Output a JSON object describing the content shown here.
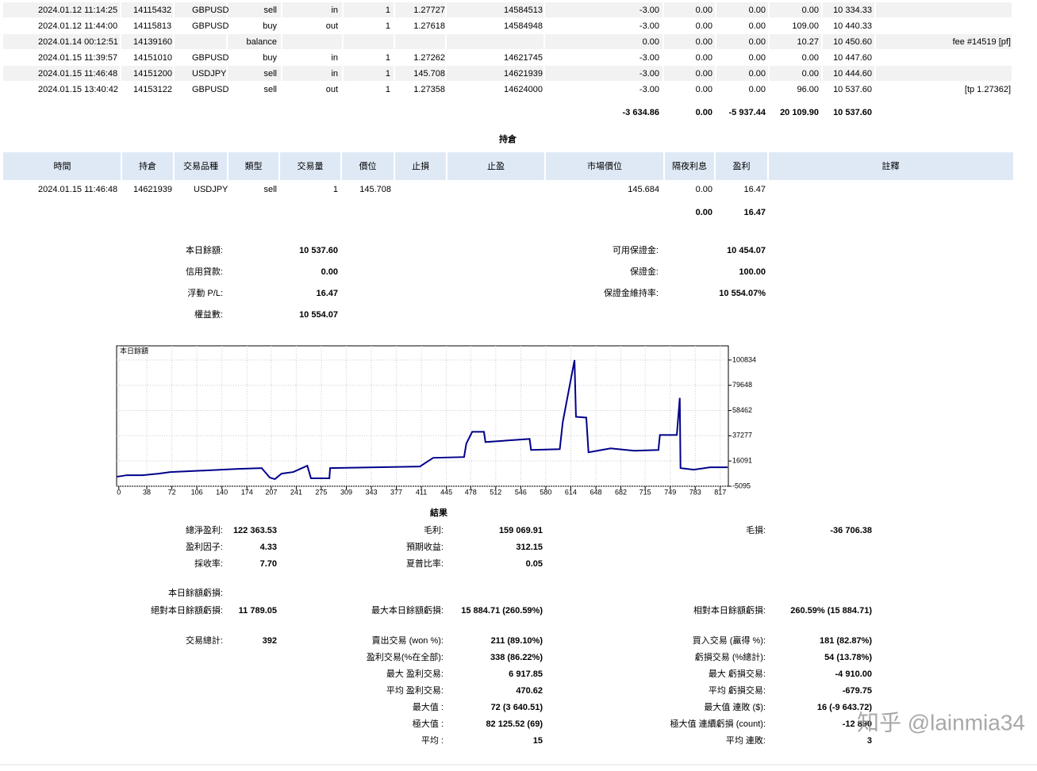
{
  "deals": {
    "rows": [
      [
        "2024.01.12 11:14:25",
        "14115432",
        "GBPUSD",
        "sell",
        "in",
        "1",
        "1.27727",
        "14584513",
        "-3.00",
        "0.00",
        "0.00",
        "0.00",
        "10 334.33",
        null
      ],
      [
        "2024.01.12 11:44:00",
        "14115813",
        "GBPUSD",
        "buy",
        "out",
        "1",
        "1.27618",
        "14584948",
        "-3.00",
        "0.00",
        "0.00",
        "109.00",
        "10 440.33",
        null
      ],
      [
        "2024.01.14 00:12:51",
        "14139160",
        null,
        "balance",
        null,
        null,
        null,
        null,
        "0.00",
        "0.00",
        "0.00",
        "10.27",
        "10 450.60",
        "fee #14519 [pf]"
      ],
      [
        "2024.01.15 11:39:57",
        "14151010",
        "GBPUSD",
        "buy",
        "in",
        "1",
        "1.27262",
        "14621745",
        "-3.00",
        "0.00",
        "0.00",
        "0.00",
        "10 447.60",
        null
      ],
      [
        "2024.01.15 11:46:48",
        "14151200",
        "USDJPY",
        "sell",
        "in",
        "1",
        "145.708",
        "14621939",
        "-3.00",
        "0.00",
        "0.00",
        "0.00",
        "10 444.60",
        null
      ],
      [
        "2024.01.15 13:40:42",
        "14153122",
        "GBPUSD",
        "sell",
        "out",
        "1",
        "1.27358",
        "14624000",
        "-3.00",
        "0.00",
        "0.00",
        "96.00",
        "10 537.60",
        "[tp 1.27362]"
      ]
    ],
    "totals": [
      null,
      null,
      null,
      null,
      null,
      null,
      null,
      null,
      "-3 634.86",
      "0.00",
      "-5 937.44",
      "20 109.90",
      "10 537.60",
      null
    ]
  },
  "positions": {
    "title": "持倉",
    "headers": [
      "時間",
      "持倉",
      "交易品種",
      "類型",
      "交易量",
      "價位",
      "止損",
      "止盈",
      "市場價位",
      "隔夜利息",
      "盈利",
      "註釋"
    ],
    "rows": [
      [
        "2024.01.15 11:46:48",
        "14621939",
        "USDJPY",
        "sell",
        "1",
        "145.708",
        null,
        null,
        "145.684",
        "0.00",
        "16.47",
        null
      ]
    ],
    "totals": [
      null,
      null,
      null,
      null,
      null,
      null,
      null,
      null,
      null,
      "0.00",
      "16.47",
      null
    ]
  },
  "summary": {
    "left": [
      [
        "本日餘額:",
        "10 537.60"
      ],
      [
        "信用貸款:",
        "0.00"
      ],
      [
        "浮動 P/L:",
        "16.47"
      ],
      [
        "權益數:",
        "10 554.07"
      ]
    ],
    "right": [
      [
        "可用保證金:",
        "10 454.07"
      ],
      [
        "保證金:",
        "100.00"
      ],
      [
        "保證金維持率:",
        "10 554.07%"
      ]
    ]
  },
  "chart_data": {
    "type": "line",
    "title": "本日餘額",
    "color": "#00008b",
    "x": [
      -3,
      11,
      32,
      54,
      70,
      118,
      162,
      194,
      205,
      212,
      221,
      237,
      256,
      261,
      286,
      287,
      409,
      427,
      469,
      472,
      480,
      496,
      498,
      558,
      560,
      599,
      603,
      619,
      621,
      635,
      638,
      668,
      700,
      733,
      735,
      758,
      762,
      763,
      781,
      803,
      827
    ],
    "values": [
      2860,
      4180,
      4180,
      5500,
      6830,
      8150,
      9480,
      10140,
      2200,
      870,
      5500,
      6830,
      12130,
      1530,
      1530,
      10140,
      11460,
      18750,
      19410,
      30670,
      40590,
      40590,
      31990,
      34630,
      25370,
      26030,
      48540,
      100834,
      53170,
      52510,
      23380,
      26690,
      24700,
      25370,
      37940,
      37940,
      69060,
      10140,
      8820,
      10800,
      10800
    ],
    "xlim": [
      -3,
      828
    ],
    "ylim": [
      -5095,
      112750
    ],
    "xticks": [
      0,
      38,
      72,
      106,
      140,
      174,
      207,
      241,
      275,
      309,
      343,
      377,
      411,
      445,
      478,
      512,
      546,
      580,
      614,
      648,
      682,
      715,
      749,
      783,
      817
    ],
    "yticks": [
      -5095,
      16091,
      37277,
      58462,
      79648,
      100834
    ]
  },
  "results": {
    "title": "結果",
    "rows": [
      [
        [
          "總淨盈利:",
          "122 363.53"
        ],
        [
          "毛利:",
          "159 069.91"
        ],
        [
          "毛損:",
          "-36 706.38"
        ]
      ],
      [
        [
          "盈利因子:",
          "4.33"
        ],
        [
          "預期收益:",
          "312.15"
        ],
        null
      ],
      [
        [
          "採收率:",
          "7.70"
        ],
        [
          "夏普比率:",
          "0.05"
        ],
        null
      ],
      [
        [
          "本日餘額虧損:"
        ],
        null,
        null
      ],
      [
        [
          "絕對本日餘額虧損:",
          "11 789.05"
        ],
        [
          "最大本日餘額虧損:",
          "15 884.71 (260.59%)"
        ],
        [
          "相對本日餘額虧損:",
          "260.59% (15 884.71)"
        ]
      ],
      [
        [
          "交易總計:",
          "392"
        ],
        [
          "賣出交易 (won %):",
          "211 (89.10%)"
        ],
        [
          "買入交易 (贏得 %):",
          "181 (82.87%)"
        ]
      ],
      [
        null,
        [
          "盈利交易(%在全部):",
          "338 (86.22%)"
        ],
        [
          "虧損交易 (%總計):",
          "54 (13.78%)"
        ]
      ],
      [
        null,
        [
          "最大 盈利交易:",
          "6 917.85"
        ],
        [
          "最大 虧損交易:",
          "-4 910.00"
        ]
      ],
      [
        null,
        [
          "平均 盈利交易:",
          "470.62"
        ],
        [
          "平均 虧損交易:",
          "-679.75"
        ]
      ],
      [
        null,
        [
          "最大值 :",
          "72 (3 640.51)"
        ],
        [
          "最大值 連敗 ($):",
          "16 (-9 643.72)"
        ]
      ],
      [
        null,
        [
          "極大值 :",
          "82 125.52 (69)"
        ],
        [
          "極大值 連續虧損 (count):",
          "-12 890"
        ]
      ],
      [
        null,
        [
          "平均 :",
          "15"
        ],
        [
          "平均 連敗:",
          "3"
        ]
      ]
    ]
  },
  "watermark": "知乎 @lainmia34"
}
